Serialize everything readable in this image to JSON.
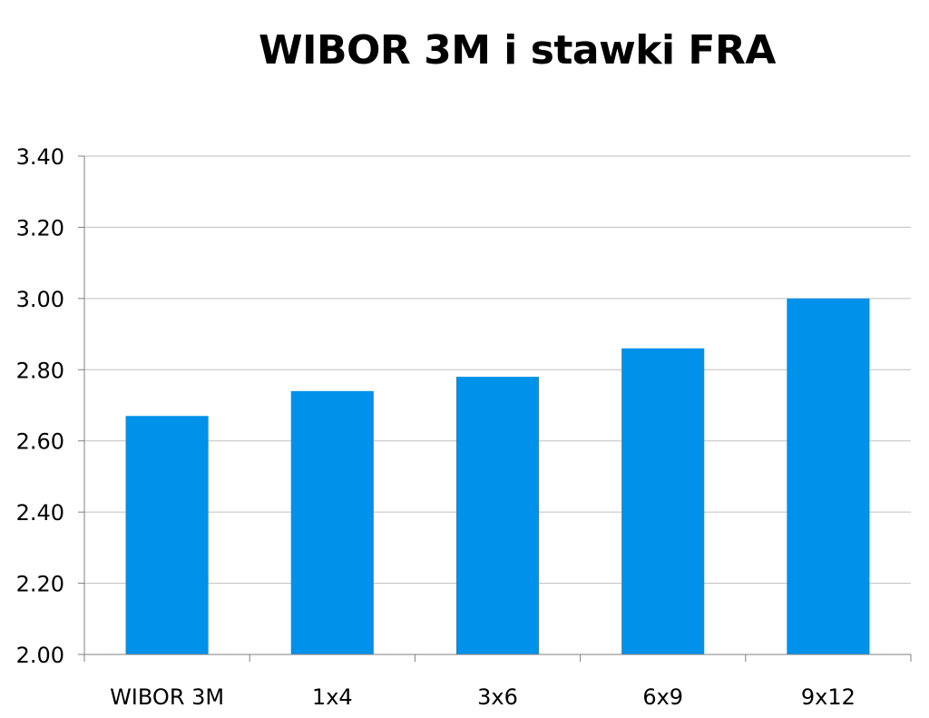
{
  "chart_data": {
    "type": "bar",
    "title": "WIBOR 3M i stawki FRA",
    "xlabel": "",
    "ylabel": "",
    "categories": [
      "WIBOR 3M",
      "1x4",
      "3x6",
      "6x9",
      "9x12"
    ],
    "values": [
      2.67,
      2.74,
      2.78,
      2.86,
      3.0
    ],
    "ylim": [
      2.0,
      3.4
    ],
    "y_ticks": [
      "2.00",
      "2.20",
      "2.40",
      "2.60",
      "2.80",
      "3.00",
      "3.20",
      "3.40"
    ],
    "grid": true,
    "legend": "none",
    "bar_color": "#0091EA",
    "grid_color": "#BFBFBF",
    "axis_color": "#808080"
  }
}
